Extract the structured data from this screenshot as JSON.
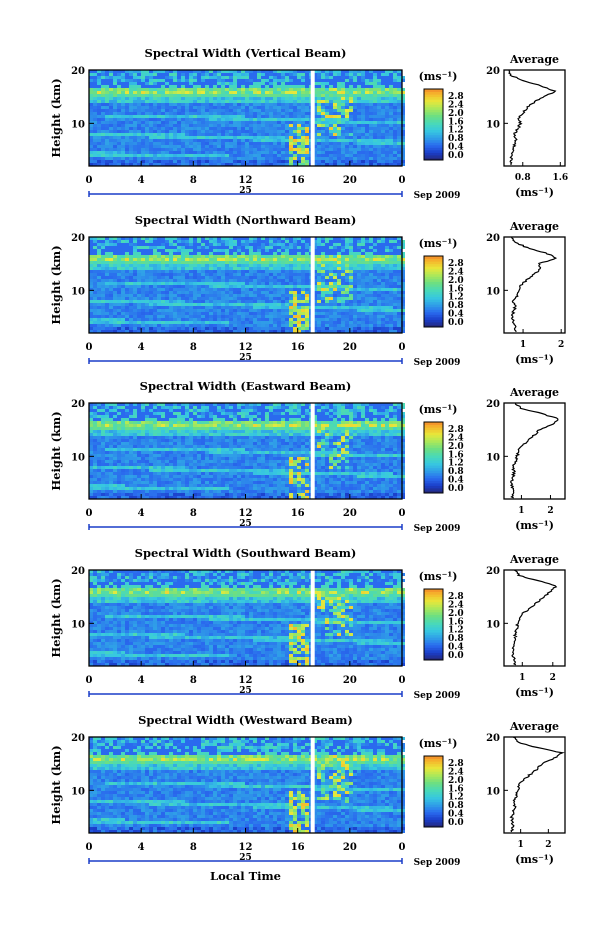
{
  "figure": {
    "xlabel": "Local Time",
    "colorbar_unit": "(ms⁻¹)",
    "colorbar_ticks": [
      "2.8",
      "2.4",
      "2.0",
      "1.6",
      "1.2",
      "0.8",
      "0.4",
      "0.0"
    ],
    "date_day": "25",
    "date_month_year": "Sep 2009",
    "x_ticks": [
      "0",
      "4",
      "8",
      "12",
      "16",
      "20",
      "0"
    ],
    "y_label": "Height (km)",
    "y_ticks": [
      "20",
      "10"
    ],
    "average_title": "Average",
    "average_xlabel": "(ms⁻¹)"
  },
  "colors": {
    "colormap": [
      "#262670",
      "#1a3dc8",
      "#2a6aee",
      "#2f9ee8",
      "#37c8e0",
      "#49d9b8",
      "#6cdf83",
      "#a9e85a",
      "#e8e83a",
      "#f5b62c",
      "#f2722a",
      "#d81e1e"
    ]
  },
  "chart_data": [
    {
      "type": "heatmap",
      "title": "Spectral Width (Vertical Beam)",
      "xlabel": "Local Time",
      "ylabel": "Height (km)",
      "xlim": [
        0,
        24
      ],
      "ylim": [
        2,
        20
      ],
      "clim": [
        0.0,
        2.8
      ],
      "gap_time_h": 17.0,
      "average_profile": {
        "xlabel": "(ms⁻¹)",
        "ylabel_ticks": [
          10,
          20
        ],
        "xlim": [
          0.4,
          1.7
        ],
        "x_ticks": [
          "0.8",
          "1.6"
        ],
        "height_km": [
          3,
          4,
          5,
          6,
          7,
          8,
          9,
          10,
          11,
          12,
          13,
          14,
          15,
          16,
          17,
          18,
          19,
          20
        ],
        "value": [
          0.55,
          0.55,
          0.6,
          0.62,
          0.65,
          0.62,
          0.7,
          0.75,
          0.72,
          0.8,
          0.9,
          1.05,
          1.25,
          1.5,
          1.2,
          0.8,
          0.55,
          0.5
        ]
      }
    },
    {
      "type": "heatmap",
      "title": "Spectral Width (Northward Beam)",
      "xlabel": "Local Time",
      "ylabel": "Height (km)",
      "xlim": [
        0,
        24
      ],
      "ylim": [
        2,
        20
      ],
      "clim": [
        0.0,
        2.8
      ],
      "gap_time_h": 17.0,
      "average_profile": {
        "xlabel": "(ms⁻¹)",
        "ylabel_ticks": [
          10,
          20
        ],
        "xlim": [
          0.5,
          2.1
        ],
        "x_ticks": [
          "1",
          "2"
        ],
        "height_km": [
          3,
          4,
          5,
          6,
          7,
          8,
          9,
          10,
          11,
          12,
          13,
          14,
          15,
          16,
          17,
          18,
          19,
          20
        ],
        "value": [
          0.8,
          0.75,
          0.7,
          0.75,
          0.8,
          0.75,
          0.85,
          0.9,
          0.95,
          1.1,
          1.3,
          1.45,
          1.4,
          1.9,
          1.6,
          1.1,
          0.8,
          0.7
        ]
      }
    },
    {
      "type": "heatmap",
      "title": "Spectral Width (Eastward Beam)",
      "xlabel": "Local Time",
      "ylabel": "Height (km)",
      "xlim": [
        0,
        24
      ],
      "ylim": [
        2,
        20
      ],
      "clim": [
        0.0,
        2.8
      ],
      "gap_time_h": 17.0,
      "average_profile": {
        "xlabel": "(ms⁻¹)",
        "ylabel_ticks": [
          10,
          20
        ],
        "xlim": [
          0.4,
          2.5
        ],
        "x_ticks": [
          "1",
          "2"
        ],
        "height_km": [
          3,
          4,
          5,
          6,
          7,
          8,
          9,
          10,
          11,
          12,
          13,
          14,
          15,
          16,
          17,
          18,
          19,
          20
        ],
        "value": [
          0.7,
          0.7,
          0.65,
          0.7,
          0.75,
          0.72,
          0.8,
          0.85,
          0.9,
          1.0,
          1.25,
          1.45,
          1.6,
          2.1,
          2.3,
          1.7,
          1.0,
          0.8
        ]
      }
    },
    {
      "type": "heatmap",
      "title": "Spectral Width (Southward Beam)",
      "xlabel": "Local Time",
      "ylabel": "Height (km)",
      "xlim": [
        0,
        24
      ],
      "ylim": [
        2,
        20
      ],
      "clim": [
        0.0,
        2.8
      ],
      "gap_time_h": 17.0,
      "average_profile": {
        "xlabel": "(ms⁻¹)",
        "ylabel_ticks": [
          10,
          20
        ],
        "xlim": [
          0.4,
          2.4
        ],
        "x_ticks": [
          "1",
          "2"
        ],
        "height_km": [
          3,
          4,
          5,
          6,
          7,
          8,
          9,
          10,
          11,
          12,
          13,
          14,
          15,
          16,
          17,
          18,
          19,
          20
        ],
        "value": [
          0.75,
          0.7,
          0.7,
          0.72,
          0.78,
          0.75,
          0.82,
          0.85,
          0.9,
          1.05,
          1.3,
          1.5,
          1.7,
          1.95,
          2.1,
          1.5,
          0.9,
          0.75
        ]
      }
    },
    {
      "type": "heatmap",
      "title": "Spectral Width (Westward Beam)",
      "xlabel": "Local Time",
      "ylabel": "Height (km)",
      "xlim": [
        0,
        24
      ],
      "ylim": [
        2,
        20
      ],
      "clim": [
        0.0,
        2.8
      ],
      "gap_time_h": 17.0,
      "average_profile": {
        "xlabel": "(ms⁻¹)",
        "ylabel_ticks": [
          10,
          20
        ],
        "xlim": [
          0.4,
          2.6
        ],
        "x_ticks": [
          "1",
          "2"
        ],
        "height_km": [
          3,
          4,
          5,
          6,
          7,
          8,
          9,
          10,
          11,
          12,
          13,
          14,
          15,
          16,
          17,
          18,
          19,
          20
        ],
        "value": [
          0.7,
          0.72,
          0.68,
          0.75,
          0.8,
          0.75,
          0.85,
          0.9,
          0.95,
          1.1,
          1.35,
          1.6,
          1.75,
          2.2,
          2.5,
          1.6,
          0.9,
          0.75
        ]
      }
    }
  ]
}
